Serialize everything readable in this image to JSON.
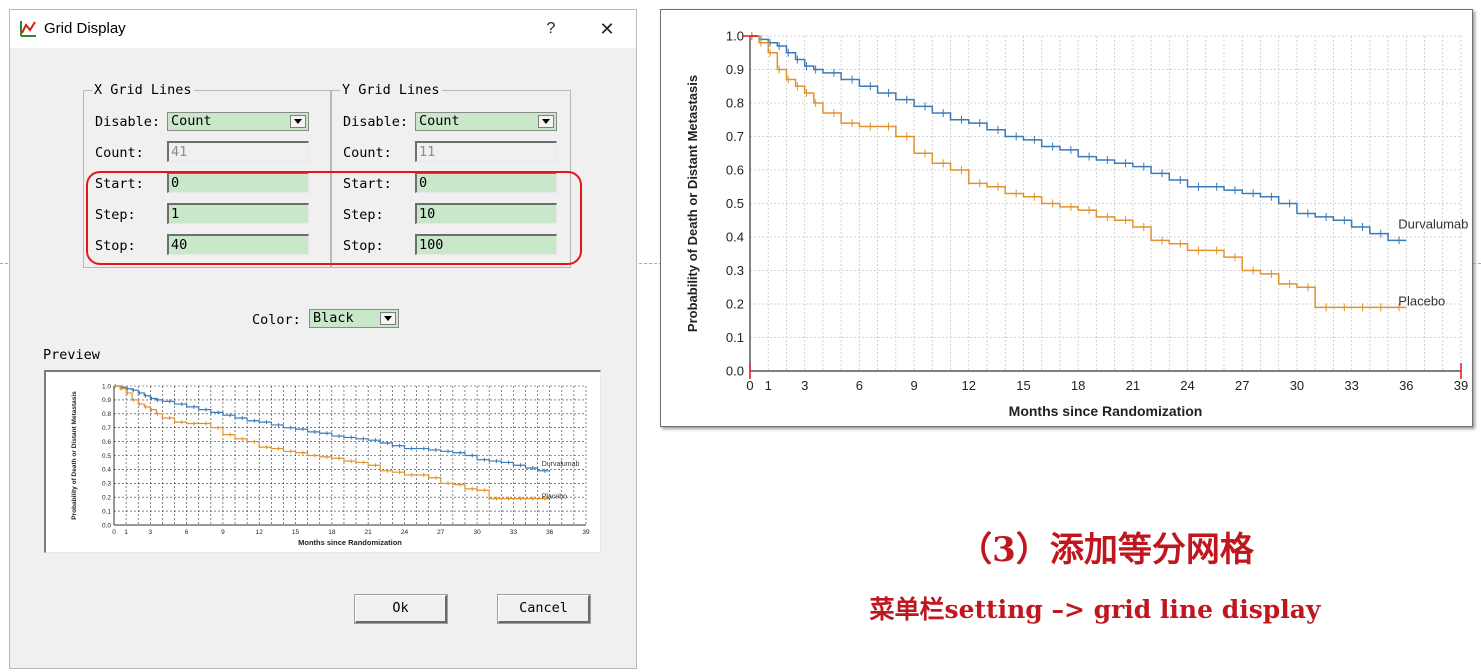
{
  "window": {
    "title": "Grid Display",
    "help_label": "?",
    "close_label": "✕"
  },
  "x_grid": {
    "title": "X Grid Lines",
    "disable_label": "Disable:",
    "disable_value": "Count",
    "count_label": "Count:",
    "count_value": "41",
    "start_label": "Start:",
    "start_value": "0",
    "step_label": "Step:",
    "step_value": "1",
    "stop_label": "Stop:",
    "stop_value": "40"
  },
  "y_grid": {
    "title": "Y Grid Lines",
    "disable_label": "Disable:",
    "disable_value": "Count",
    "count_label": "Count:",
    "count_value": "11",
    "start_label": "Start:",
    "start_value": "0",
    "step_label": "Step:",
    "step_value": "10",
    "stop_label": "Stop:",
    "stop_value": "100"
  },
  "color": {
    "label": "Color:",
    "value": "Black"
  },
  "preview": {
    "label": "Preview"
  },
  "buttons": {
    "ok": "Ok",
    "cancel": "Cancel"
  },
  "caption": {
    "title": "（3）添加等分网格",
    "subtitle": "菜单栏setting –> grid line display"
  },
  "colors": {
    "durvalumab": "#3a7ab8",
    "placebo": "#e0922e",
    "highlight": "#e8141c",
    "caption": "#c0161e",
    "field_green": "#c9e8c9"
  },
  "chart_data": {
    "type": "line",
    "xlabel": "Months since Randomization",
    "ylabel": "Probability of Death or Distant Metastasis",
    "x_ticks": [
      0,
      1,
      3,
      6,
      9,
      12,
      15,
      18,
      21,
      24,
      27,
      30,
      33,
      36,
      39
    ],
    "y_ticks": [
      "0.0",
      "0.1",
      "0.2",
      "0.3",
      "0.4",
      "0.5",
      "0.6",
      "0.7",
      "0.8",
      "0.9",
      "1.0"
    ],
    "xlim": [
      0,
      39
    ],
    "ylim": [
      0,
      1
    ],
    "grid": "x every 1 month, y every 0.1",
    "series": [
      {
        "name": "Durvalumab",
        "x": [
          0,
          0.5,
          1,
          1.5,
          2,
          2.5,
          3,
          3.5,
          4,
          5,
          6,
          7,
          8,
          9,
          10,
          11,
          12,
          13,
          14,
          15,
          16,
          17,
          18,
          19,
          20,
          21,
          22,
          23,
          24,
          25,
          26,
          27,
          28,
          29,
          30,
          31,
          32,
          33,
          34,
          35,
          36
        ],
        "y": [
          1.0,
          0.99,
          0.98,
          0.97,
          0.95,
          0.93,
          0.91,
          0.9,
          0.89,
          0.87,
          0.85,
          0.83,
          0.81,
          0.79,
          0.77,
          0.75,
          0.74,
          0.72,
          0.7,
          0.69,
          0.67,
          0.66,
          0.64,
          0.63,
          0.62,
          0.61,
          0.59,
          0.57,
          0.55,
          0.55,
          0.54,
          0.53,
          0.52,
          0.5,
          0.47,
          0.46,
          0.45,
          0.43,
          0.41,
          0.39,
          0.39
        ]
      },
      {
        "name": "Placebo",
        "x": [
          0,
          0.5,
          1,
          1.5,
          2,
          2.5,
          3,
          3.5,
          4,
          5,
          6,
          7,
          8,
          9,
          10,
          11,
          12,
          13,
          14,
          15,
          16,
          17,
          18,
          19,
          20,
          21,
          22,
          23,
          24,
          25,
          26,
          27,
          28,
          29,
          30,
          31,
          32,
          33,
          34,
          35,
          36
        ],
        "y": [
          1.0,
          0.98,
          0.95,
          0.9,
          0.87,
          0.85,
          0.83,
          0.8,
          0.77,
          0.74,
          0.73,
          0.73,
          0.7,
          0.65,
          0.62,
          0.6,
          0.56,
          0.55,
          0.53,
          0.52,
          0.5,
          0.49,
          0.48,
          0.46,
          0.45,
          0.43,
          0.39,
          0.38,
          0.36,
          0.36,
          0.34,
          0.3,
          0.29,
          0.26,
          0.25,
          0.19,
          0.19,
          0.19,
          0.19,
          0.19,
          0.19
        ]
      }
    ]
  }
}
